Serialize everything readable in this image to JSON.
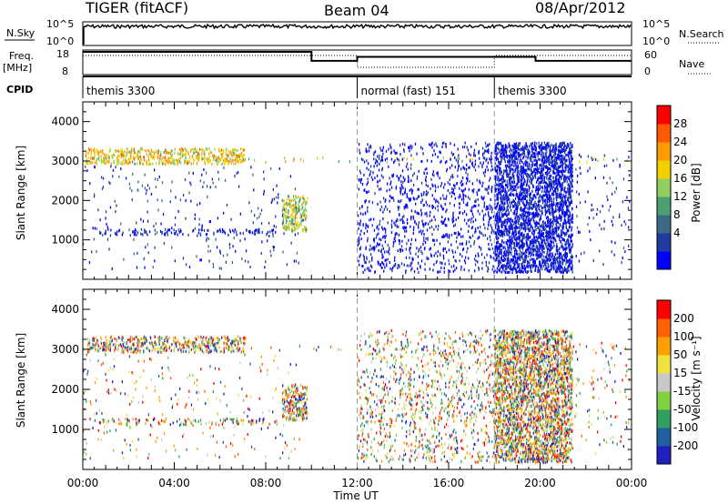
{
  "header": {
    "title": "TIGER (fitACF)",
    "beam": "Beam 04",
    "date": "08/Apr/2012"
  },
  "strip": {
    "nsky_label": "N.Sky",
    "nsky_ticks": [
      "10^5",
      "10^0"
    ],
    "nsearch_label": "N.Search",
    "freq_label": "Freq.",
    "freq_unit": "[MHz]",
    "freq_ticks": [
      "18",
      "8"
    ],
    "nave_label": "Nave",
    "nave_ticks": [
      "60",
      "0"
    ],
    "cpid_label": "CPID",
    "cpid_segments": [
      {
        "name": "themis 3300",
        "start": 0,
        "end": 12
      },
      {
        "name": "normal (fast) 151",
        "start": 12,
        "end": 18
      },
      {
        "name": "themis 3300",
        "start": 18,
        "end": 24
      }
    ],
    "freq_steps_hours": [
      0,
      10,
      12,
      18,
      19.8,
      24
    ],
    "freq_levels": [
      1,
      0.55,
      0.75,
      0.75,
      0.55,
      1
    ]
  },
  "chart_data": [
    {
      "type": "heatmap",
      "panel": "power",
      "ylabel": "Slant Range [km]",
      "xlabel": "",
      "xlim": [
        0,
        24
      ],
      "ylim": [
        0,
        4500
      ],
      "xticks": [
        "00:00",
        "04:00",
        "08:00",
        "12:00",
        "16:00",
        "20:00",
        "00:00"
      ],
      "yticks": [
        1000,
        2000,
        3000,
        4000
      ],
      "colorbar": {
        "label": "Power [dB]",
        "ticks": [
          28,
          24,
          20,
          16,
          12,
          8,
          4
        ],
        "range": [
          0,
          32
        ],
        "colors": [
          "#0000ff",
          "#1f3aa0",
          "#3a6a88",
          "#4aa070",
          "#8fd060",
          "#f2d000",
          "#ff9a00",
          "#ff5a00",
          "#ff0000"
        ]
      }
    },
    {
      "type": "heatmap",
      "panel": "velocity",
      "ylabel": "Slant Range [km]",
      "xlabel": "Time UT",
      "xlim": [
        0,
        24
      ],
      "ylim": [
        0,
        4500
      ],
      "xticks": [
        "00:00",
        "04:00",
        "08:00",
        "12:00",
        "16:00",
        "20:00",
        "00:00"
      ],
      "yticks": [
        1000,
        2000,
        3000,
        4000
      ],
      "colorbar": {
        "label": "Velocity [m s⁻¹]",
        "ticks": [
          200,
          100,
          50,
          15,
          -15,
          -50,
          -100,
          -200
        ],
        "colors": [
          "#2020c0",
          "#2060a0",
          "#30a060",
          "#80d040",
          "#c8c8c8",
          "#f0e040",
          "#ffa000",
          "#ff6000",
          "#ff0000"
        ]
      }
    }
  ]
}
